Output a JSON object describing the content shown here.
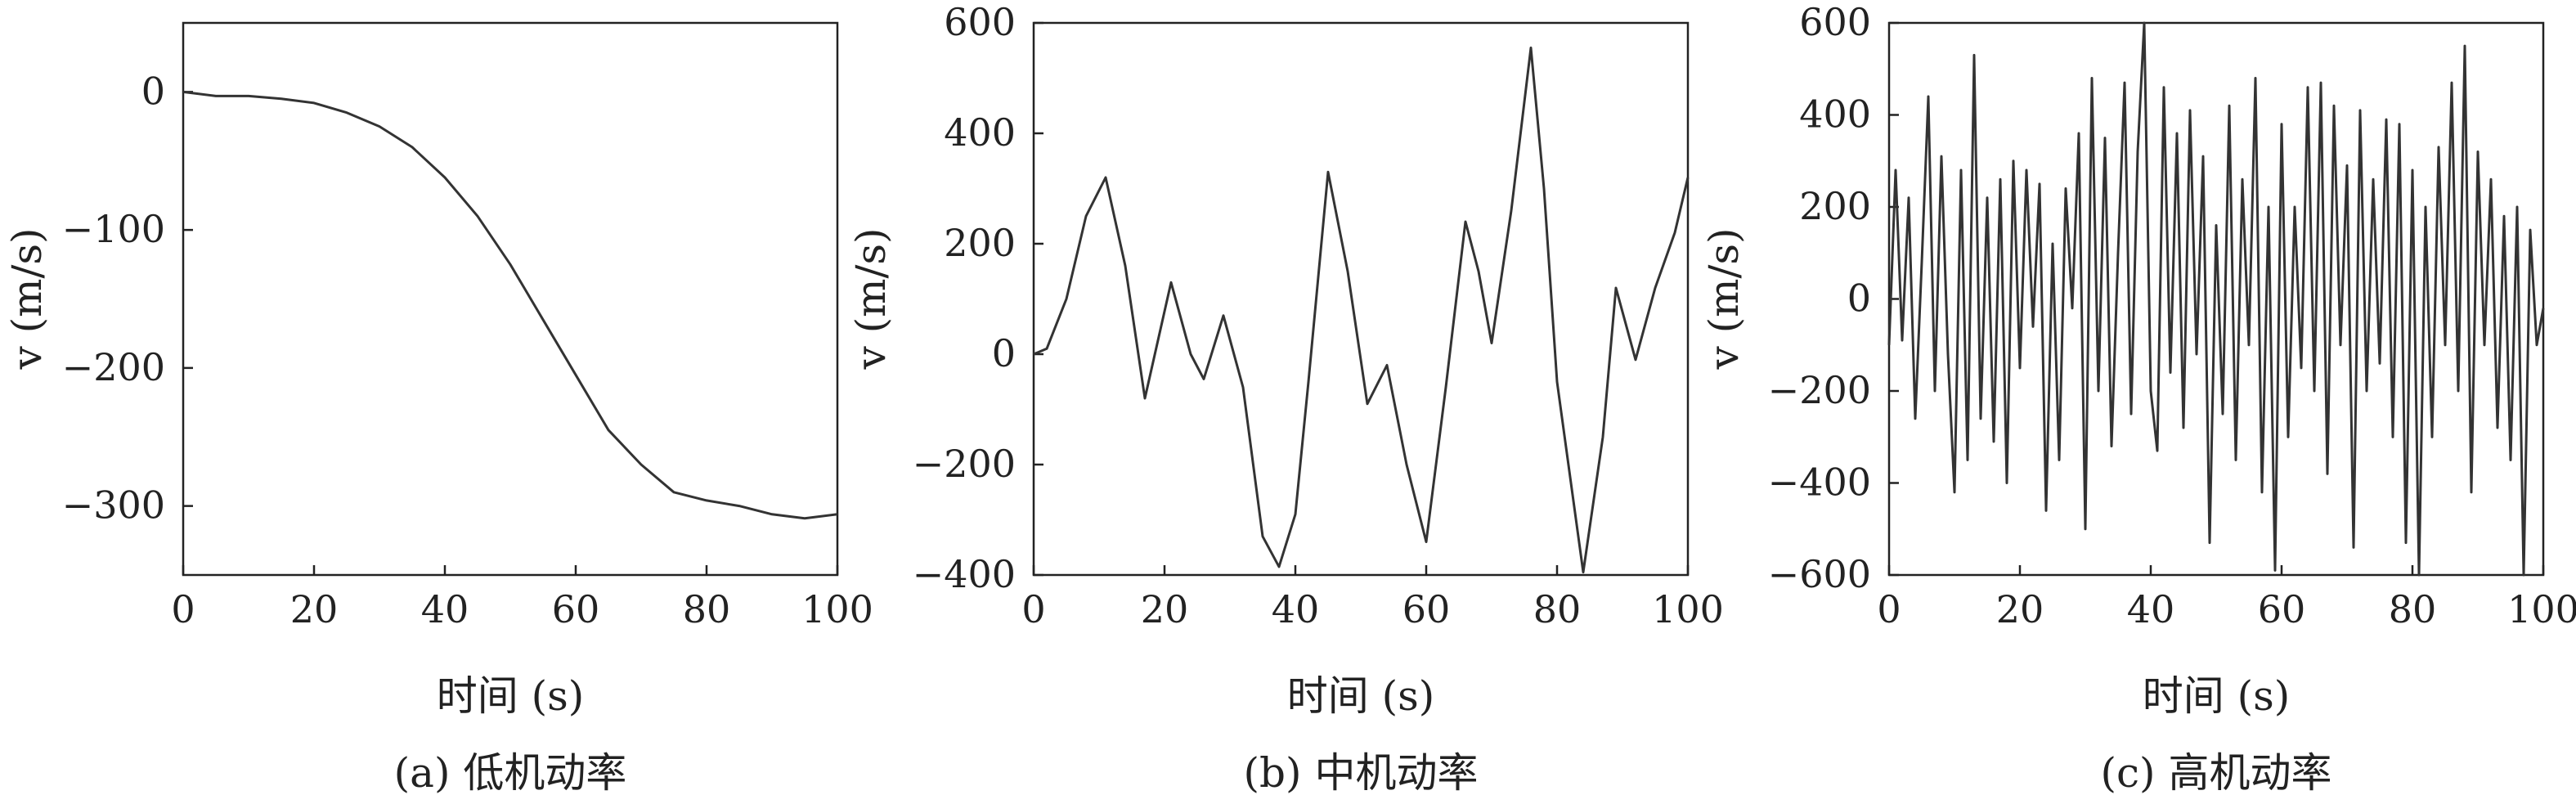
{
  "chart_data": [
    {
      "type": "line",
      "panel_caption": "(a) 低机动率",
      "xlabel": "时间 (s)",
      "ylabel": "v (m/s)",
      "xlim": [
        0,
        100
      ],
      "ylim": [
        -350,
        50
      ],
      "xticks": [
        0,
        20,
        40,
        60,
        80,
        100
      ],
      "yticks": [
        0,
        -100,
        -200,
        -300
      ],
      "grid": false,
      "series": [
        {
          "x": [
            0,
            5,
            10,
            15,
            20,
            25,
            30,
            35,
            40,
            45,
            50,
            55,
            60,
            65,
            70,
            75,
            80,
            85,
            90,
            95,
            100
          ],
          "y": [
            0,
            -3,
            -3,
            -5,
            -8,
            -15,
            -25,
            -40,
            -62,
            -90,
            -125,
            -165,
            -205,
            -245,
            -270,
            -290,
            -296,
            -300,
            -306,
            -309,
            -306
          ]
        }
      ]
    },
    {
      "type": "line",
      "panel_caption": "(b) 中机动率",
      "xlabel": "时间 (s)",
      "ylabel": "v (m/s)",
      "xlim": [
        0,
        100
      ],
      "ylim": [
        -400,
        600
      ],
      "xticks": [
        0,
        20,
        40,
        60,
        80,
        100
      ],
      "yticks": [
        600,
        400,
        200,
        0,
        -200,
        -400
      ],
      "grid": false,
      "series": [
        {
          "x": [
            0,
            2,
            5,
            8,
            11,
            14,
            17,
            21,
            24,
            26,
            29,
            32,
            35,
            37.5,
            40,
            42,
            45,
            48,
            51,
            54,
            57,
            60,
            63,
            66,
            68,
            70,
            73,
            76,
            78,
            80,
            84,
            87,
            89,
            92,
            95,
            98,
            100
          ],
          "y": [
            0,
            10,
            100,
            250,
            320,
            160,
            -80,
            130,
            0,
            -45,
            70,
            -60,
            -330,
            -385,
            -290,
            -50,
            330,
            150,
            -90,
            -20,
            -200,
            -340,
            -60,
            240,
            150,
            20,
            260,
            555,
            300,
            -50,
            -395,
            -150,
            120,
            -10,
            120,
            220,
            320
          ]
        }
      ]
    },
    {
      "type": "line",
      "panel_caption": "(c) 高机动率",
      "xlabel": "时间 (s)",
      "ylabel": "v (m/s)",
      "xlim": [
        0,
        100
      ],
      "ylim": [
        -600,
        600
      ],
      "xticks": [
        0,
        20,
        40,
        60,
        80,
        100
      ],
      "yticks": [
        600,
        400,
        200,
        0,
        -200,
        -400,
        -600
      ],
      "grid": false,
      "series": [
        {
          "x": [
            0,
            1,
            2,
            3,
            4,
            5,
            6,
            7,
            8,
            9,
            10,
            11,
            12,
            13,
            14,
            15,
            16,
            17,
            18,
            19,
            20,
            21,
            22,
            23,
            24,
            25,
            26,
            27,
            28,
            29,
            30,
            31,
            32,
            33,
            34,
            35,
            36,
            37,
            38,
            39,
            40,
            41,
            42,
            43,
            44,
            45,
            46,
            47,
            48,
            49,
            50,
            51,
            52,
            53,
            54,
            55,
            56,
            57,
            58,
            59,
            60,
            61,
            62,
            63,
            64,
            65,
            66,
            67,
            68,
            69,
            70,
            71,
            72,
            73,
            74,
            75,
            76,
            77,
            78,
            79,
            80,
            81,
            82,
            83,
            84,
            85,
            86,
            87,
            88,
            89,
            90,
            91,
            92,
            93,
            94,
            95,
            96,
            97,
            98,
            99,
            100
          ],
          "y": [
            -100,
            280,
            -90,
            220,
            -260,
            80,
            440,
            -200,
            310,
            -120,
            -420,
            280,
            -350,
            530,
            -260,
            220,
            -310,
            260,
            -400,
            300,
            -150,
            280,
            -60,
            250,
            -460,
            120,
            -350,
            240,
            -20,
            360,
            -500,
            480,
            -200,
            350,
            -320,
            100,
            470,
            -250,
            320,
            600,
            -200,
            -330,
            460,
            -160,
            360,
            -280,
            410,
            -120,
            310,
            -530,
            160,
            -250,
            420,
            -350,
            260,
            -100,
            480,
            -420,
            200,
            -590,
            380,
            -300,
            200,
            -150,
            460,
            -200,
            470,
            -380,
            420,
            -100,
            290,
            -540,
            410,
            -200,
            260,
            -140,
            390,
            -300,
            380,
            -530,
            280,
            -600,
            200,
            -300,
            330,
            -100,
            470,
            -200,
            550,
            -420,
            320,
            -100,
            260,
            -280,
            180,
            -350,
            200,
            -600,
            150,
            -100,
            -20
          ]
        }
      ]
    }
  ]
}
